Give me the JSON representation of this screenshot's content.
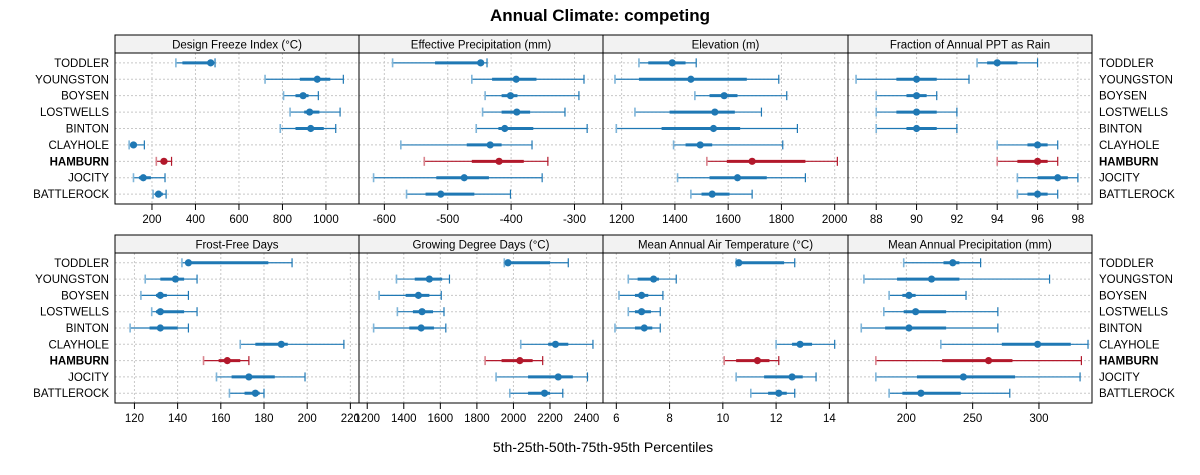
{
  "chart_data": {
    "type": "dotplot-percentile",
    "title": "Annual Climate: competing",
    "xlabel": "5th-25th-50th-75th-95th Percentiles",
    "categories": [
      "TODDLER",
      "YOUNGSTON",
      "BOYSEN",
      "LOSTWELLS",
      "BINTON",
      "CLAYHOLE",
      "HAMBURN",
      "JOCITY",
      "BATTLEROCK"
    ],
    "highlight": "HAMBURN",
    "percentiles": [
      "p5",
      "p25",
      "p50",
      "p75",
      "p95"
    ],
    "colors": {
      "default": "#1f78b4",
      "default_light": "#7fb5d9",
      "highlight": "#b2182b",
      "highlight_light": "#d9848e",
      "strip_bg": "#f2f2f2",
      "grid": "#c8c8c8"
    },
    "legend": "none",
    "grid": true,
    "panels": [
      {
        "title": "Design Freeze Index (°C)",
        "xlim": [
          30,
          1152
        ],
        "ticks": [
          200,
          400,
          600,
          800,
          1000
        ],
        "tick_labels": [
          "200",
          "400",
          "600",
          "800",
          "1000"
        ],
        "rows": [
          [
            310,
            340,
            470,
            480,
            490
          ],
          [
            720,
            880,
            960,
            1020,
            1080
          ],
          [
            805,
            860,
            895,
            920,
            965
          ],
          [
            835,
            900,
            925,
            970,
            1065
          ],
          [
            790,
            860,
            930,
            990,
            1045
          ],
          [
            95,
            105,
            115,
            130,
            165
          ],
          [
            220,
            240,
            255,
            270,
            290
          ],
          [
            115,
            140,
            160,
            195,
            260
          ],
          [
            205,
            215,
            230,
            250,
            265
          ]
        ]
      },
      {
        "title": "Effective Precipitation (mm)",
        "xlim": [
          -640,
          -255
        ],
        "ticks": [
          -600,
          -500,
          -400,
          -300
        ],
        "tick_labels": [
          "-600",
          "-500",
          "-400",
          "-300"
        ],
        "rows": [
          [
            -587,
            -520,
            -448,
            -445,
            -438
          ],
          [
            -462,
            -430,
            -392,
            -360,
            -285
          ],
          [
            -441,
            -415,
            -401,
            -390,
            -293
          ],
          [
            -445,
            -415,
            -391,
            -370,
            -315
          ],
          [
            -455,
            -420,
            -410,
            -365,
            -280
          ],
          [
            -574,
            -470,
            -433,
            -415,
            -367
          ],
          [
            -537,
            -462,
            -419,
            -380,
            -342
          ],
          [
            -617,
            -518,
            -474,
            -435,
            -351
          ],
          [
            -565,
            -535,
            -511,
            -458,
            -401
          ]
        ]
      },
      {
        "title": "Elevation (m)",
        "xlim": [
          1130,
          2050
        ],
        "ticks": [
          1200,
          1400,
          1600,
          1800,
          2000
        ],
        "tick_labels": [
          "1200",
          "1400",
          "1600",
          "1800",
          "2000"
        ],
        "rows": [
          [
            1265,
            1300,
            1390,
            1440,
            1480
          ],
          [
            1175,
            1265,
            1460,
            1670,
            1790
          ],
          [
            1475,
            1530,
            1585,
            1635,
            1820
          ],
          [
            1250,
            1380,
            1550,
            1625,
            1725
          ],
          [
            1180,
            1350,
            1545,
            1645,
            1860
          ],
          [
            1395,
            1440,
            1495,
            1540,
            1805
          ],
          [
            1520,
            1595,
            1690,
            1890,
            2010
          ],
          [
            1410,
            1530,
            1635,
            1745,
            1890
          ],
          [
            1460,
            1500,
            1540,
            1605,
            1690
          ]
        ]
      },
      {
        "title": "Fraction of Annual PPT as Rain",
        "xlim": [
          86.6,
          98.7
        ],
        "ticks": [
          88,
          90,
          92,
          94,
          96,
          98
        ],
        "tick_labels": [
          "88",
          "90",
          "92",
          "94",
          "96",
          "98"
        ],
        "rows": [
          [
            93,
            93.5,
            94,
            95,
            96
          ],
          [
            87,
            89,
            90,
            91,
            92.6
          ],
          [
            88,
            89.5,
            90,
            90.5,
            91
          ],
          [
            88,
            89,
            90,
            91,
            92
          ],
          [
            88,
            89.5,
            90,
            91,
            92
          ],
          [
            94,
            95.5,
            96,
            96.5,
            97
          ],
          [
            94,
            95,
            96,
            96.5,
            97
          ],
          [
            95,
            96,
            97,
            97.5,
            98
          ],
          [
            95,
            95.5,
            96,
            96.5,
            97
          ]
        ]
      },
      {
        "title": "Frost-Free Days",
        "xlim": [
          111,
          224
        ],
        "ticks": [
          120,
          140,
          160,
          180,
          200,
          220
        ],
        "tick_labels": [
          "120",
          "140",
          "160",
          "180",
          "200",
          "220"
        ],
        "rows": [
          [
            142,
            144,
            145,
            182,
            193
          ],
          [
            125,
            132,
            139,
            143,
            149
          ],
          [
            123,
            130,
            132,
            135,
            145
          ],
          [
            128,
            130,
            132,
            143,
            149
          ],
          [
            118,
            127,
            132,
            140,
            145
          ],
          [
            169,
            176,
            188,
            191,
            217
          ],
          [
            152,
            159,
            163,
            169,
            173
          ],
          [
            158,
            165,
            173,
            185,
            199
          ],
          [
            164,
            171,
            176,
            178,
            180
          ]
        ]
      },
      {
        "title": "Growing Degree Days (°C)",
        "xlim": [
          1155,
          2490
        ],
        "ticks": [
          1200,
          1400,
          1600,
          1800,
          2000,
          2200,
          2400
        ],
        "tick_labels": [
          "1200",
          "1400",
          "1600",
          "1800",
          "2000",
          "2200",
          "2400"
        ],
        "rows": [
          [
            1950,
            1955,
            1970,
            2200,
            2300
          ],
          [
            1360,
            1460,
            1540,
            1610,
            1650
          ],
          [
            1265,
            1410,
            1480,
            1540,
            1605
          ],
          [
            1365,
            1450,
            1500,
            1560,
            1620
          ],
          [
            1235,
            1430,
            1495,
            1565,
            1630
          ],
          [
            2040,
            2190,
            2230,
            2300,
            2435
          ],
          [
            1845,
            1935,
            2035,
            2105,
            2160
          ],
          [
            1905,
            2080,
            2245,
            2325,
            2405
          ],
          [
            1980,
            2080,
            2170,
            2200,
            2270
          ]
        ]
      },
      {
        "title": "Mean Annual Air Temperature (°C)",
        "xlim": [
          5.5,
          14.7
        ],
        "ticks": [
          6,
          8,
          10,
          12,
          14
        ],
        "tick_labels": [
          "6",
          "8",
          "10",
          "12",
          "14"
        ],
        "rows": [
          [
            10.5,
            10.55,
            10.6,
            12.3,
            12.7
          ],
          [
            6.45,
            6.8,
            7.4,
            7.6,
            8.25
          ],
          [
            6.1,
            6.7,
            6.95,
            7.2,
            7.75
          ],
          [
            6.45,
            6.7,
            6.95,
            7.3,
            7.65
          ],
          [
            5.95,
            6.7,
            7.05,
            7.35,
            7.65
          ],
          [
            12.0,
            12.6,
            12.9,
            13.35,
            14.2
          ],
          [
            10.05,
            10.5,
            11.3,
            11.75,
            12.1
          ],
          [
            10.5,
            11.55,
            12.6,
            13.0,
            13.5
          ],
          [
            11.05,
            11.7,
            12.1,
            12.4,
            12.7
          ]
        ]
      },
      {
        "title": "Mean Annual Precipitation (mm)",
        "xlim": [
          156,
          340
        ],
        "ticks": [
          200,
          250,
          300
        ],
        "tick_labels": [
          "200",
          "250",
          "300"
        ],
        "rows": [
          [
            198,
            228,
            235,
            240,
            256
          ],
          [
            168,
            193,
            219,
            240,
            308
          ],
          [
            187,
            197,
            202,
            207,
            245
          ],
          [
            183,
            198,
            207,
            230,
            269
          ],
          [
            166,
            184,
            202,
            230,
            269
          ],
          [
            226,
            272,
            299,
            324,
            337
          ],
          [
            177,
            227,
            262,
            280,
            332
          ],
          [
            177,
            208,
            243,
            282,
            331
          ],
          [
            187,
            197,
            211,
            241,
            278
          ]
        ]
      }
    ]
  }
}
